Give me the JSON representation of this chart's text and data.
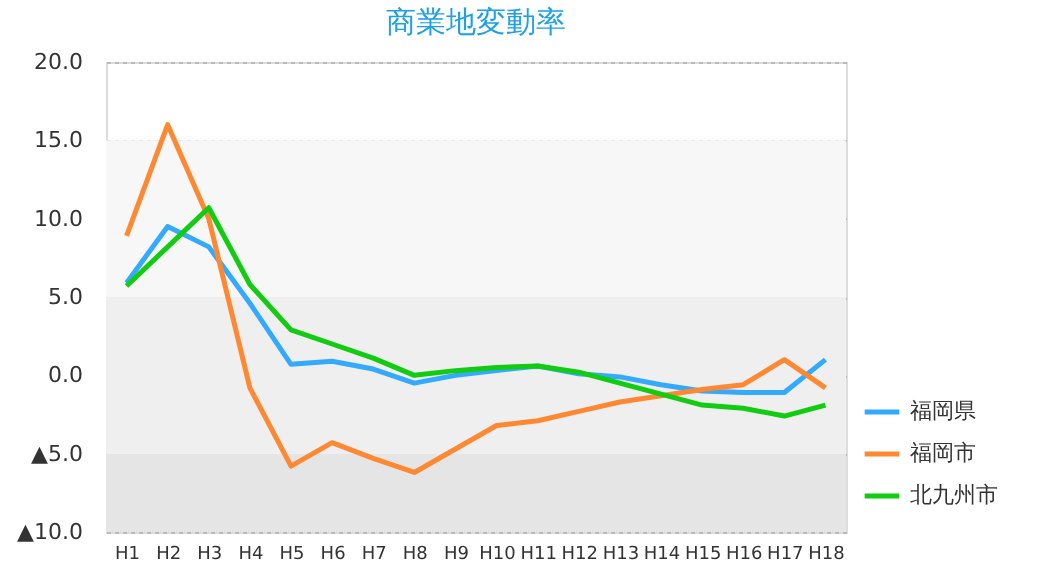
{
  "chart_data": {
    "type": "line",
    "title": "商業地変動率",
    "categories": [
      "H1",
      "H2",
      "H3",
      "H4",
      "H5",
      "H6",
      "H7",
      "H8",
      "H9",
      "H10",
      "H11",
      "H12",
      "H13",
      "H14",
      "H15",
      "H16",
      "H17",
      "H18"
    ],
    "series": [
      {
        "name": "福岡県",
        "color": "#33aaff",
        "values": [
          5.9,
          9.5,
          8.2,
          4.6,
          0.7,
          0.9,
          0.4,
          -0.5,
          0.0,
          0.3,
          0.6,
          0.1,
          -0.1,
          -0.6,
          -1.0,
          -1.1,
          -1.1,
          1.0
        ]
      },
      {
        "name": "福岡市",
        "color": "#ff8833",
        "values": [
          8.9,
          16.0,
          10.0,
          -0.8,
          -5.8,
          -4.3,
          -5.3,
          -6.2,
          -4.7,
          -3.2,
          -2.9,
          -2.3,
          -1.7,
          -1.3,
          -0.9,
          -0.6,
          1.0,
          -0.8
        ]
      },
      {
        "name": "北九州市",
        "color": "#11cc11",
        "values": [
          5.7,
          8.2,
          10.7,
          5.8,
          2.9,
          2.0,
          1.1,
          0.0,
          0.3,
          0.5,
          0.6,
          0.2,
          -0.5,
          -1.2,
          -1.9,
          -2.1,
          -2.6,
          -1.9
        ]
      }
    ],
    "ylim": [
      -10,
      20
    ],
    "yticks": [
      {
        "value": -10,
        "label": "▲10.0"
      },
      {
        "value": -5,
        "label": "▲5.0"
      },
      {
        "value": 0,
        "label": "0.0"
      },
      {
        "value": 5,
        "label": "5.0"
      },
      {
        "value": 10,
        "label": "10.0"
      },
      {
        "value": 15,
        "label": "15.0"
      },
      {
        "value": 20,
        "label": "20.0"
      }
    ],
    "bands": [
      {
        "axis": "y",
        "from": 5,
        "to": 15,
        "color": "#f7f7f7"
      },
      {
        "axis": "y",
        "from": -5,
        "to": 5,
        "color": "#efefef"
      },
      {
        "axis": "y",
        "from": -10,
        "to": -5,
        "color": "#e5e5e5"
      }
    ],
    "grid": "y",
    "legend": "bottom right",
    "marker": "none",
    "line_style": "solid"
  }
}
